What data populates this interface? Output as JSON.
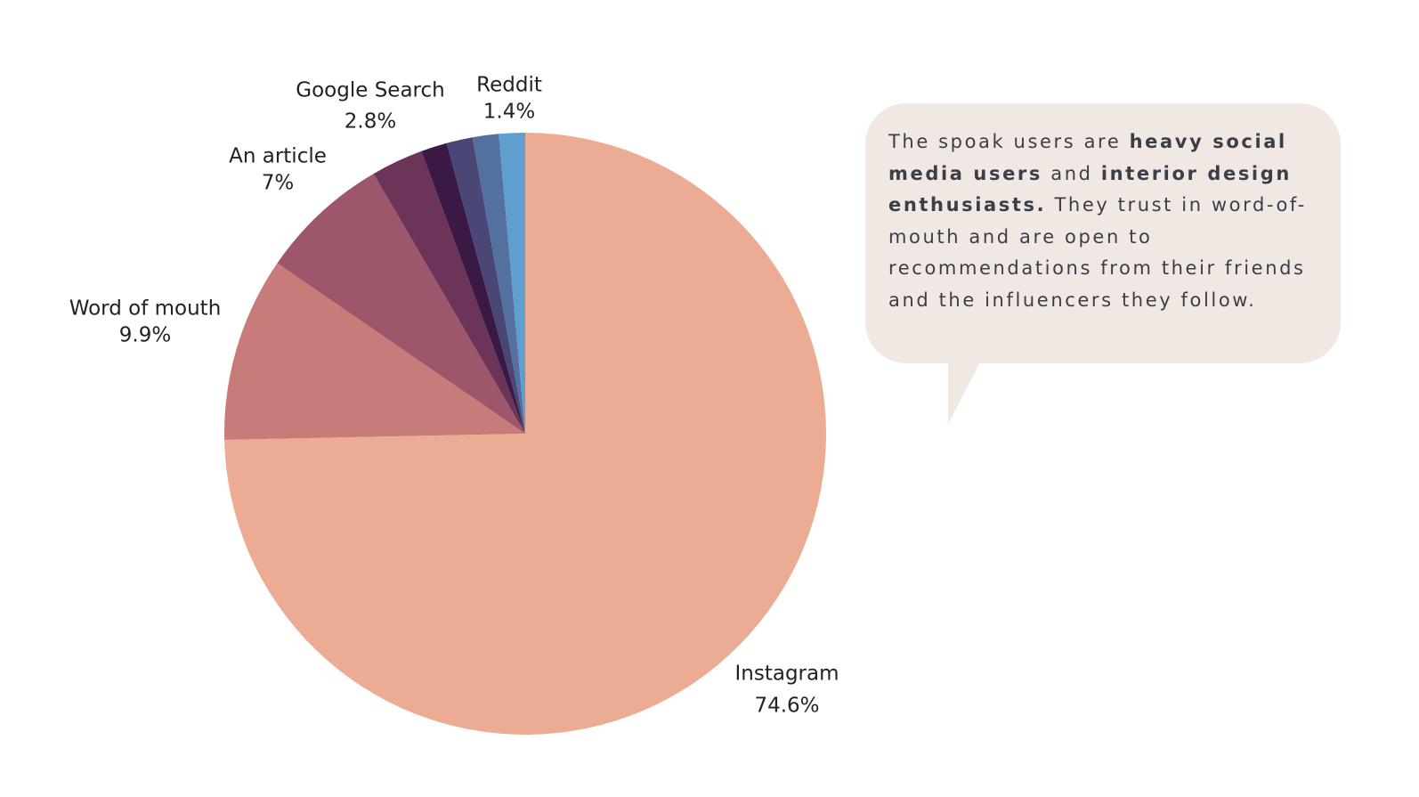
{
  "chart_data": {
    "type": "pie",
    "categories": [
      "Instagram",
      "Word of mouth",
      "An article",
      "Google Search",
      null,
      null,
      null,
      "Reddit"
    ],
    "values": [
      74.6,
      9.9,
      7,
      2.8,
      1.4,
      1.4,
      1.4,
      1.4
    ],
    "value_labels": [
      "74.6%",
      "9.9%",
      "7%",
      "2.8%",
      null,
      null,
      null,
      "1.4%"
    ],
    "colors": [
      "#ecac94",
      "#c87c7a",
      "#9e566a",
      "#6c3459",
      "#3a1a45",
      "#4a4675",
      "#53709f",
      "#5e9fcf"
    ],
    "direction": "counterclockwise-from-top-reversed"
  },
  "callout": [
    "The spoak users are ",
    "heavy social media users",
    " and ",
    "interior design enthusiasts.",
    " They trust in word-of-mouth and are open to recommendations from their friends and the influencers they follow."
  ]
}
